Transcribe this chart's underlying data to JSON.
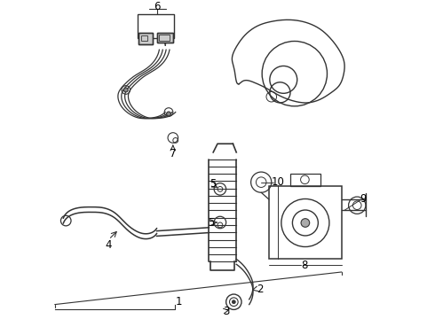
{
  "bg_color": "#ffffff",
  "line_color": "#333333",
  "fig_width": 4.9,
  "fig_height": 3.6,
  "dpi": 100,
  "label_fontsize": 8.5,
  "transmission_outline": [
    [
      0.52,
      0.54,
      0.5,
      0.48,
      0.46,
      0.45,
      0.46,
      0.47,
      0.5,
      0.54,
      0.57,
      0.6,
      0.62,
      0.63,
      0.62,
      0.6,
      0.57,
      0.55,
      0.52
    ],
    [
      0.88,
      0.9,
      0.92,
      0.93,
      0.92,
      0.9,
      0.87,
      0.85,
      0.84,
      0.84,
      0.85,
      0.87,
      0.88,
      0.9,
      0.92,
      0.93,
      0.92,
      0.9,
      0.88
    ]
  ]
}
